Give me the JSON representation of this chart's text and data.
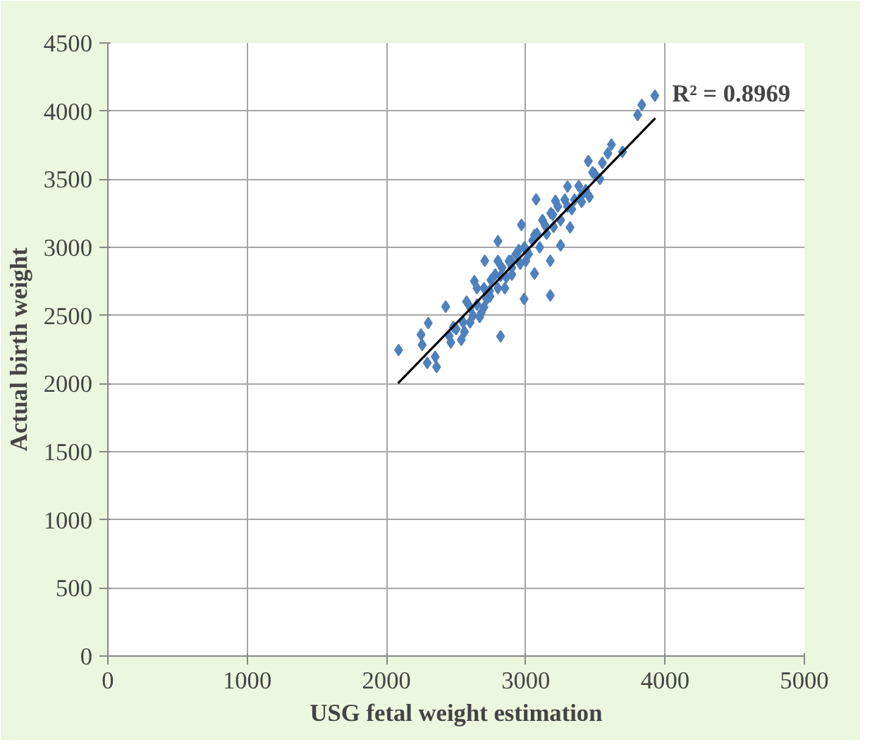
{
  "chart_data": {
    "type": "scatter",
    "xlabel": "USG fetal weight estimation",
    "ylabel": "Actual birth weight",
    "xlim": [
      0,
      5000
    ],
    "xticks": [
      0,
      1000,
      2000,
      3000,
      4000,
      5000
    ],
    "ylim": [
      0,
      4500
    ],
    "yticks": [
      0,
      500,
      1000,
      1500,
      2000,
      2500,
      3000,
      3500,
      4000,
      4500
    ],
    "grid": true,
    "annotations": [
      "R² = 0.8969"
    ],
    "series": [
      {
        "marker": "diamond",
        "color": "#4f81bd",
        "x": [
          3927,
          3833,
          3803,
          3615,
          3589,
          3694,
          3449,
          3494,
          3532,
          3300,
          3457,
          3401,
          3074,
          3213,
          3318,
          3194,
          3137,
          2969,
          3250,
          2800,
          3063,
          3007,
          3176,
          2706,
          2894,
          2819,
          2988,
          3176,
          3063,
          2631,
          2743,
          2575,
          2669,
          2819,
          2425,
          2481,
          2537,
          2462,
          2300,
          2248,
          2087,
          2256,
          2350,
          2360,
          2293,
          2550,
          2600,
          2650,
          2700,
          2720,
          2750,
          2780,
          2800,
          2830,
          2860,
          2880,
          2900,
          2930,
          2960,
          2990,
          3020,
          3050,
          3100,
          3150,
          3200,
          3250,
          3300,
          3350,
          3400,
          2500,
          2450,
          2600,
          2650,
          2680,
          2560,
          2620,
          2700,
          2740,
          2800,
          2850,
          2900,
          2950,
          3000,
          3080,
          3120,
          3180,
          3230,
          3280,
          3330,
          3380,
          3430,
          3480,
          3550
        ],
        "values": [
          4113,
          4046,
          3971,
          3754,
          3690,
          3701,
          3633,
          3540,
          3502,
          3446,
          3371,
          3334,
          3352,
          3341,
          3146,
          3240,
          3165,
          3165,
          3015,
          3045,
          3090,
          2977,
          2902,
          2902,
          2902,
          2790,
          2621,
          2647,
          2808,
          2752,
          2640,
          2602,
          2490,
          2347,
          2565,
          2415,
          2321,
          2302,
          2444,
          2359,
          2246,
          2284,
          2197,
          2122,
          2152,
          2450,
          2560,
          2580,
          2700,
          2620,
          2760,
          2800,
          2700,
          2850,
          2780,
          2900,
          2850,
          2950,
          2880,
          3000,
          2950,
          3050,
          3000,
          3100,
          3150,
          3200,
          3300,
          3350,
          3380,
          2400,
          2350,
          2450,
          2700,
          2520,
          2380,
          2500,
          2560,
          2680,
          2900,
          2700,
          2800,
          2980,
          2900,
          3100,
          3200,
          3250,
          3300,
          3350,
          3280,
          3450,
          3420,
          3550,
          3620
        ]
      },
      {
        "type": "line",
        "color": "#000000",
        "x": [
          2083,
          3930
        ],
        "values": [
          2002,
          3948
        ]
      }
    ]
  }
}
